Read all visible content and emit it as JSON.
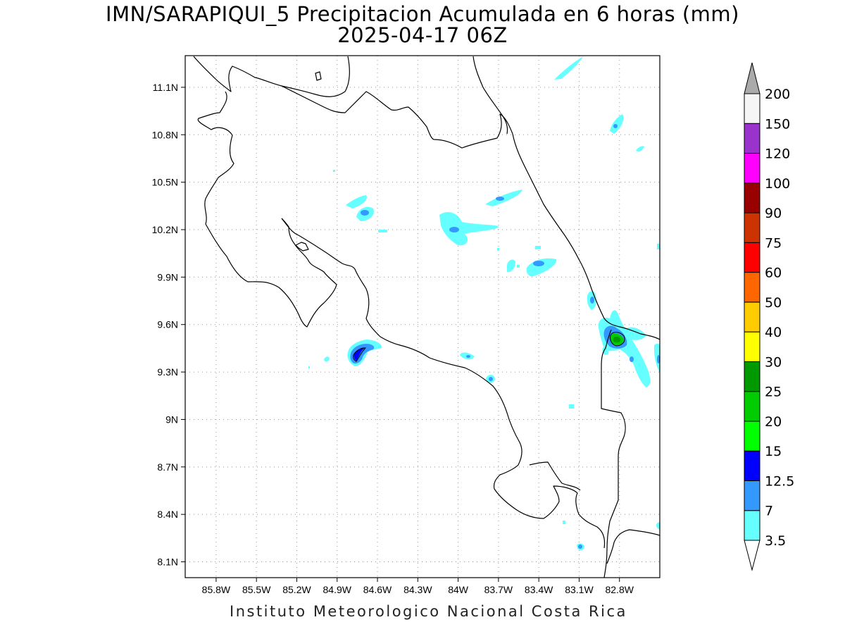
{
  "title": {
    "line1": "IMN/SARAPIQUI_5 Precipitacion Acumulada en 6 horas (mm)",
    "line2": "2025-04-17 06Z"
  },
  "footer": {
    "text": "Instituto Meteorologico Nacional Costa Rica"
  },
  "map": {
    "lon_range": [
      -86.03,
      -82.5
    ],
    "lat_range": [
      8.0,
      11.3
    ],
    "x_ticks": [
      {
        "value": -85.8,
        "label": "85.8W"
      },
      {
        "value": -85.5,
        "label": "85.5W"
      },
      {
        "value": -85.2,
        "label": "85.2W"
      },
      {
        "value": -84.9,
        "label": "84.9W"
      },
      {
        "value": -84.6,
        "label": "84.6W"
      },
      {
        "value": -84.3,
        "label": "84.3W"
      },
      {
        "value": -84.0,
        "label": "84W"
      },
      {
        "value": -83.7,
        "label": "83.7W"
      },
      {
        "value": -83.4,
        "label": "83.4W"
      },
      {
        "value": -83.1,
        "label": "83.1W"
      },
      {
        "value": -82.8,
        "label": "82.8W"
      }
    ],
    "y_ticks": [
      {
        "value": 8.1,
        "label": "8.1N"
      },
      {
        "value": 8.4,
        "label": "8.4N"
      },
      {
        "value": 8.7,
        "label": "8.7N"
      },
      {
        "value": 9.0,
        "label": "9N"
      },
      {
        "value": 9.3,
        "label": "9.3N"
      },
      {
        "value": 9.6,
        "label": "9.6N"
      },
      {
        "value": 9.9,
        "label": "9.9N"
      },
      {
        "value": 10.2,
        "label": "10.2N"
      },
      {
        "value": 10.5,
        "label": "10.5N"
      },
      {
        "value": 10.8,
        "label": "10.8N"
      },
      {
        "value": 11.1,
        "label": "11.1N"
      }
    ],
    "grid": true
  },
  "legend": {
    "levels": [
      {
        "label": "3.5",
        "color": "#66ffff"
      },
      {
        "label": "7",
        "color": "#3399ff"
      },
      {
        "label": "12.5",
        "color": "#0000ff"
      },
      {
        "label": "15",
        "color": "#00ff00"
      },
      {
        "label": "20",
        "color": "#00cc00"
      },
      {
        "label": "25",
        "color": "#009900"
      },
      {
        "label": "30",
        "color": "#ffff00"
      },
      {
        "label": "40",
        "color": "#ffcc00"
      },
      {
        "label": "50",
        "color": "#ff6600"
      },
      {
        "label": "60",
        "color": "#ff0000"
      },
      {
        "label": "75",
        "color": "#cc3300"
      },
      {
        "label": "90",
        "color": "#990000"
      },
      {
        "label": "100",
        "color": "#ff00ff"
      },
      {
        "label": "120",
        "color": "#9933cc"
      },
      {
        "label": "150",
        "color": "#f5f5f5"
      },
      {
        "label": "200",
        "color": "#aaaaaa"
      }
    ],
    "bottom_arrow_color": "#ffffff",
    "top_arrow_color": "#aaaaaa"
  }
}
